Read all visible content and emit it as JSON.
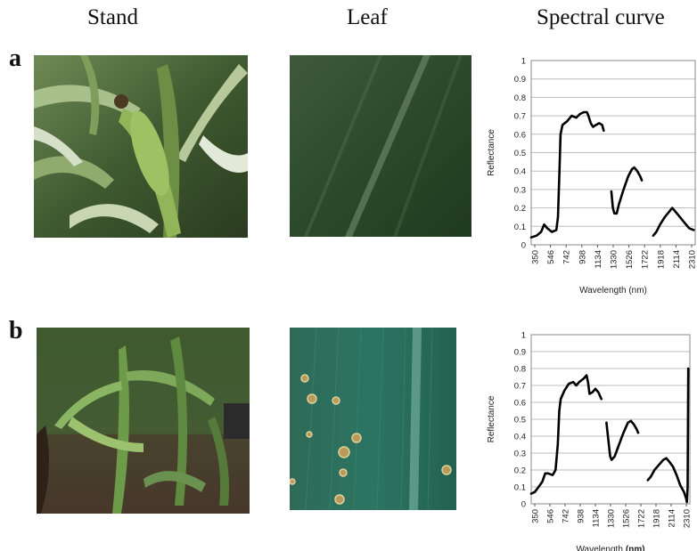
{
  "headers": {
    "stand": "Stand",
    "leaf": "Leaf",
    "spectral": "Spectral curve"
  },
  "rows": [
    {
      "label": "a"
    },
    {
      "label": "b"
    }
  ],
  "colors": {
    "curve": "#000000",
    "grid": "#bdbdbd",
    "frame": "#888888"
  },
  "chart_data": [
    {
      "type": "line",
      "xlabel": "Wavelength (nm)",
      "xlabel_bold_part": "",
      "ylabel": "Reflectance",
      "ylim": [
        0,
        1
      ],
      "xlim": [
        350,
        2500
      ],
      "x_ticks": [
        "350",
        "546",
        "742",
        "938",
        "1134",
        "1330",
        "1526",
        "1722",
        "1918",
        "2114",
        "2310"
      ],
      "y_ticks": [
        "0",
        "0.1",
        "0.2",
        "0.3",
        "0.4",
        "0.5",
        "0.6",
        "0.7",
        "0.8",
        "0.9",
        "1"
      ],
      "grid": true,
      "series": [
        {
          "segments": [
            [
              [
                350,
                0.04
              ],
              [
                420,
                0.05
              ],
              [
                480,
                0.07
              ],
              [
                520,
                0.11
              ],
              [
                560,
                0.09
              ],
              [
                620,
                0.07
              ],
              [
                680,
                0.08
              ],
              [
                700,
                0.15
              ],
              [
                720,
                0.4
              ],
              [
                735,
                0.6
              ],
              [
                760,
                0.65
              ],
              [
                820,
                0.67
              ],
              [
                880,
                0.7
              ],
              [
                940,
                0.69
              ],
              [
                990,
                0.71
              ],
              [
                1040,
                0.72
              ],
              [
                1080,
                0.72
              ],
              [
                1100,
                0.7
              ],
              [
                1130,
                0.66
              ],
              [
                1160,
                0.64
              ],
              [
                1200,
                0.65
              ],
              [
                1240,
                0.66
              ],
              [
                1280,
                0.65
              ],
              [
                1300,
                0.62
              ]
            ],
            [
              [
                1400,
                0.29
              ],
              [
                1420,
                0.2
              ],
              [
                1440,
                0.17
              ],
              [
                1470,
                0.17
              ],
              [
                1500,
                0.22
              ],
              [
                1560,
                0.3
              ],
              [
                1620,
                0.37
              ],
              [
                1670,
                0.41
              ],
              [
                1700,
                0.42
              ],
              [
                1740,
                0.4
              ],
              [
                1780,
                0.37
              ],
              [
                1800,
                0.35
              ]
            ],
            [
              [
                1950,
                0.05
              ],
              [
                1990,
                0.07
              ],
              [
                2040,
                0.11
              ],
              [
                2100,
                0.15
              ],
              [
                2160,
                0.18
              ],
              [
                2200,
                0.2
              ],
              [
                2240,
                0.18
              ],
              [
                2300,
                0.15
              ],
              [
                2360,
                0.12
              ],
              [
                2420,
                0.09
              ],
              [
                2480,
                0.08
              ]
            ]
          ]
        }
      ]
    },
    {
      "type": "line",
      "xlabel": "Wavelength",
      "xlabel_bold_part": "(nm)",
      "ylabel": "Reflectance",
      "ylim": [
        0,
        1
      ],
      "xlim": [
        350,
        2500
      ],
      "x_ticks": [
        "350",
        "546",
        "742",
        "938",
        "1134",
        "1330",
        "1526",
        "1722",
        "1918",
        "2114",
        "2310"
      ],
      "y_ticks": [
        "0",
        "0.1",
        "0.2",
        "0.3",
        "0.4",
        "0.5",
        "0.6",
        "0.7",
        "0.8",
        "0.9",
        "1"
      ],
      "grid": true,
      "series": [
        {
          "segments": [
            [
              [
                350,
                0.06
              ],
              [
                400,
                0.07
              ],
              [
                450,
                0.1
              ],
              [
                500,
                0.13
              ],
              [
                540,
                0.18
              ],
              [
                580,
                0.18
              ],
              [
                640,
                0.17
              ],
              [
                680,
                0.2
              ],
              [
                710,
                0.35
              ],
              [
                730,
                0.55
              ],
              [
                750,
                0.62
              ],
              [
                800,
                0.67
              ],
              [
                860,
                0.71
              ],
              [
                920,
                0.72
              ],
              [
                960,
                0.7
              ],
              [
                1000,
                0.72
              ],
              [
                1060,
                0.74
              ],
              [
                1100,
                0.76
              ],
              [
                1120,
                0.72
              ],
              [
                1140,
                0.65
              ],
              [
                1180,
                0.66
              ],
              [
                1220,
                0.68
              ],
              [
                1260,
                0.66
              ],
              [
                1300,
                0.62
              ]
            ],
            [
              [
                1370,
                0.48
              ],
              [
                1400,
                0.36
              ],
              [
                1420,
                0.28
              ],
              [
                1440,
                0.26
              ],
              [
                1480,
                0.28
              ],
              [
                1540,
                0.35
              ],
              [
                1600,
                0.42
              ],
              [
                1660,
                0.48
              ],
              [
                1700,
                0.49
              ],
              [
                1740,
                0.47
              ],
              [
                1780,
                0.44
              ],
              [
                1800,
                0.42
              ]
            ],
            [
              [
                1930,
                0.14
              ],
              [
                1970,
                0.16
              ],
              [
                2020,
                0.2
              ],
              [
                2080,
                0.23
              ],
              [
                2140,
                0.26
              ],
              [
                2180,
                0.27
              ],
              [
                2220,
                0.25
              ],
              [
                2270,
                0.22
              ],
              [
                2320,
                0.17
              ],
              [
                2370,
                0.11
              ],
              [
                2420,
                0.07
              ],
              [
                2450,
                0.03
              ],
              [
                2460,
                0.01
              ],
              [
                2470,
                0.1
              ],
              [
                2475,
                0.5
              ],
              [
                2478,
                0.8
              ]
            ]
          ]
        }
      ]
    }
  ]
}
